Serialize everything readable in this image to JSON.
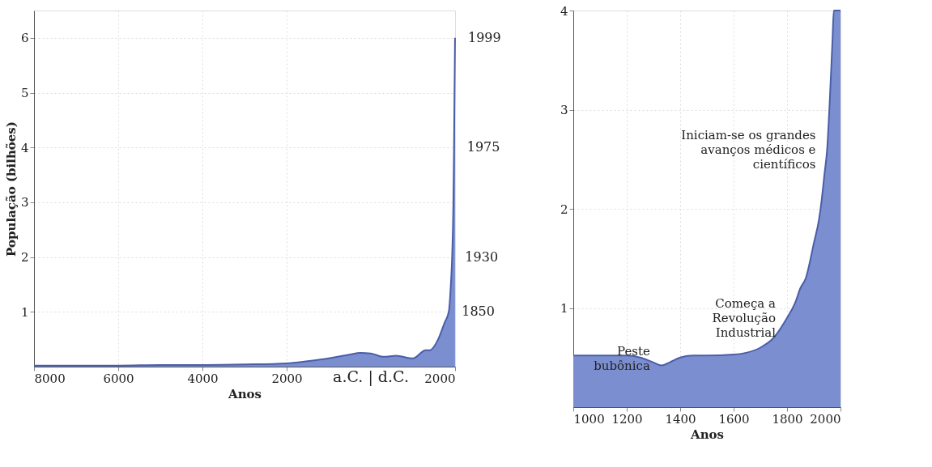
{
  "chart_data": [
    {
      "type": "area",
      "xlabel": "Anos",
      "ylabel": "População (bilhões)",
      "x": [
        -8000,
        -7000,
        -6000,
        -5000,
        -4000,
        -3000,
        -2000,
        -1500,
        -1000,
        -500,
        -250,
        0,
        300,
        600,
        1000,
        1300,
        1400,
        1600,
        1750,
        1850,
        1900,
        1930,
        1960,
        1975,
        1990,
        1999
      ],
      "series": [
        {
          "color": "#7b8fd0",
          "values": [
            0.02,
            0.02,
            0.02,
            0.03,
            0.03,
            0.04,
            0.06,
            0.1,
            0.15,
            0.22,
            0.25,
            0.24,
            0.18,
            0.2,
            0.15,
            0.3,
            0.3,
            0.5,
            0.8,
            1,
            1.5,
            2,
            3,
            4,
            5.3,
            6
          ]
        }
      ],
      "xlim": [
        -8000,
        2000
      ],
      "ylim": [
        0,
        6.5
      ],
      "xticks": [
        {
          "value": -8000,
          "label": "8000"
        },
        {
          "value": -6000,
          "label": "6000"
        },
        {
          "value": -4000,
          "label": "4000"
        },
        {
          "value": -2000,
          "label": "2000"
        },
        2000
      ],
      "yticks": [
        1,
        2,
        3,
        4,
        5,
        6
      ],
      "grid": true,
      "annotations": [
        {
          "text": "1999",
          "x": 1999,
          "y": 6
        },
        {
          "text": "1975",
          "x": 1975,
          "y": 4
        },
        {
          "text": "1930",
          "x": 1930,
          "y": 2
        },
        {
          "text": "1850",
          "x": 1850,
          "y": 1
        },
        "a.C. | d.C."
      ]
    },
    {
      "type": "area",
      "xlabel": "Anos",
      "x": [
        1000,
        1100,
        1200,
        1250,
        1300,
        1330,
        1360,
        1400,
        1450,
        1500,
        1600,
        1650,
        1700,
        1750,
        1800,
        1830,
        1850,
        1870,
        1900,
        1920,
        1930,
        1940,
        1950,
        1960,
        1970,
        1975,
        2000
      ],
      "series": [
        {
          "color": "#7b8fd0",
          "values": [
            0.52,
            0.52,
            0.52,
            0.5,
            0.45,
            0.42,
            0.45,
            0.5,
            0.52,
            0.52,
            0.53,
            0.55,
            0.6,
            0.7,
            0.9,
            1.05,
            1.2,
            1.3,
            1.65,
            1.9,
            2.1,
            2.35,
            2.6,
            3.1,
            3.7,
            4,
            4
          ]
        }
      ],
      "xlim": [
        1000,
        2000
      ],
      "ylim": [
        0,
        4
      ],
      "xticks": [
        1000,
        1200,
        1400,
        1600,
        1800,
        2000
      ],
      "yticks": [
        1,
        2,
        3,
        4
      ],
      "grid": true,
      "annotations": [
        {
          "text": "Peste\nbubônica",
          "x": 1330,
          "y": 0.42
        },
        {
          "text": "Começa a\nRevolução\nIndustrial",
          "x": 1800,
          "y": 0.9
        },
        {
          "text": "Iniciam-se os grandes\navanços médicos e\ncientíficos",
          "x": 1950,
          "y": 2.6
        }
      ]
    }
  ]
}
